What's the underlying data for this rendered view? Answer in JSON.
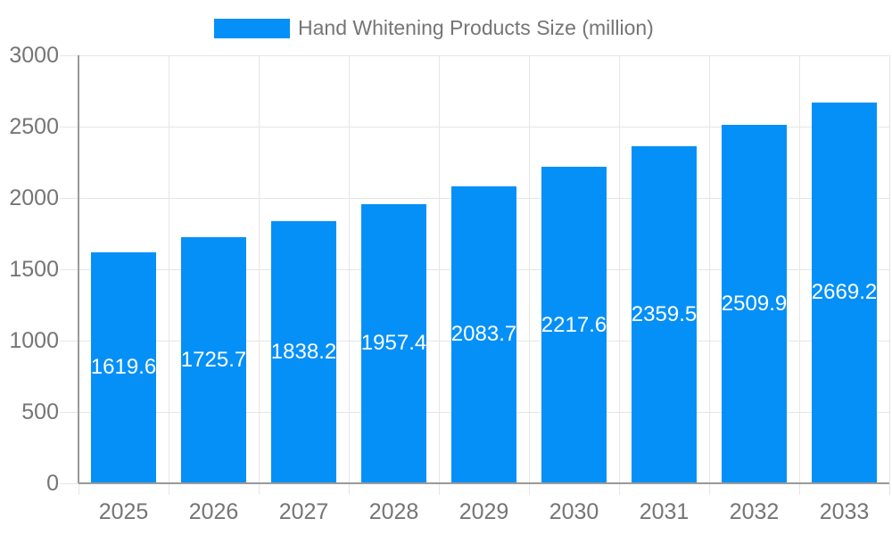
{
  "legend": {
    "label": "Hand Whitening Products Size (million)"
  },
  "chart_data": {
    "type": "bar",
    "title": "Hand Whitening Products Size (million)",
    "categories": [
      "2025",
      "2026",
      "2027",
      "2028",
      "2029",
      "2030",
      "2031",
      "2032",
      "2033"
    ],
    "values": [
      1619.6,
      1725.7,
      1838.2,
      1957.4,
      2083.7,
      2217.6,
      2359.5,
      2509.9,
      2669.2
    ],
    "value_labels": [
      "1619.6",
      "1725.7",
      "1838.2",
      "1957.4",
      "2083.7",
      "2217.6",
      "2359.5",
      "2509.9",
      "2669.2"
    ],
    "xlabel": "",
    "ylabel": "",
    "ylim": [
      0,
      3000
    ],
    "yticks": [
      0,
      500,
      1000,
      1500,
      2000,
      2500,
      3000
    ],
    "ytick_labels": [
      "0",
      "500",
      "1000",
      "1500",
      "2000",
      "2500",
      "3000"
    ],
    "grid": true,
    "legend_position": "top-center",
    "colors": {
      "bar": "#0590F8",
      "grid": "#E6E6E6",
      "axis": "#999999",
      "tick_text": "#757575",
      "legend_text": "#757575",
      "value_text": "#FFFFFF",
      "background": "#FFFFFF"
    }
  }
}
